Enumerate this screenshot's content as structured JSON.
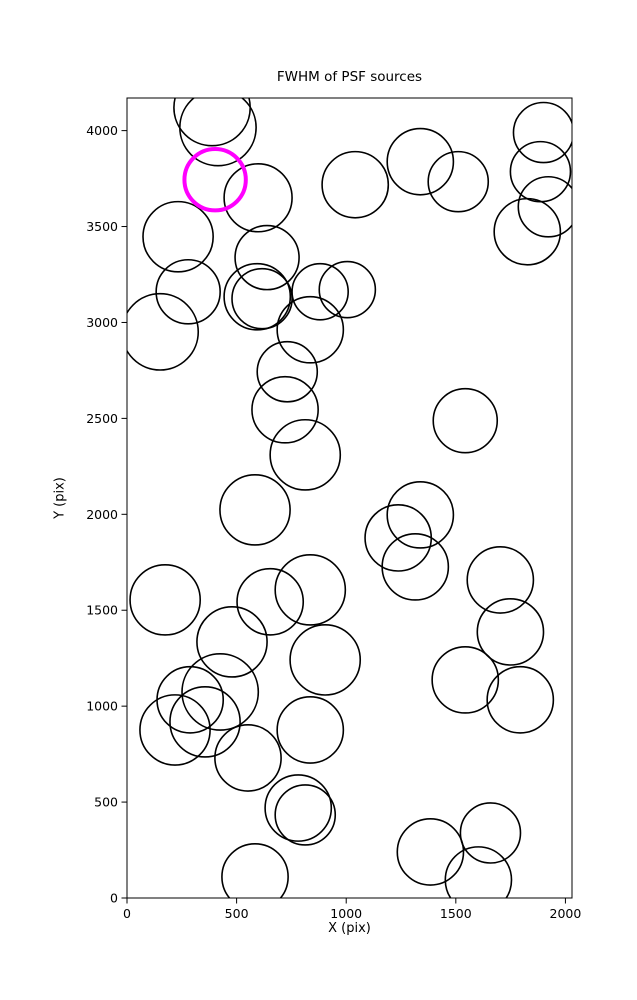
{
  "chart_data": {
    "type": "scatter",
    "title": "FWHM of PSF sources",
    "xlabel": "X (pix)",
    "ylabel": "Y (pix)",
    "xlim": [
      0,
      2030
    ],
    "ylim": [
      0,
      4170
    ],
    "xticks": [
      0,
      500,
      1000,
      1500,
      2000
    ],
    "yticks": [
      0,
      500,
      1000,
      1500,
      2000,
      2500,
      3000,
      3500,
      4000
    ],
    "grid": false,
    "legend": "none",
    "marker_style": "open-circle",
    "marker_color": "#000000",
    "highlight_color": "#ff00ff",
    "circles": [
      {
        "x": 388,
        "y": 4120,
        "r": 174
      },
      {
        "x": 415,
        "y": 4016,
        "r": 174
      },
      {
        "x": 598,
        "y": 3650,
        "r": 155
      },
      {
        "x": 1041,
        "y": 3718,
        "r": 151
      },
      {
        "x": 1338,
        "y": 3838,
        "r": 151
      },
      {
        "x": 1511,
        "y": 3734,
        "r": 137
      },
      {
        "x": 1900,
        "y": 3990,
        "r": 137
      },
      {
        "x": 1886,
        "y": 3786,
        "r": 137
      },
      {
        "x": 1922,
        "y": 3603,
        "r": 137
      },
      {
        "x": 1826,
        "y": 3473,
        "r": 151
      },
      {
        "x": 233,
        "y": 3447,
        "r": 160
      },
      {
        "x": 279,
        "y": 3160,
        "r": 146
      },
      {
        "x": 639,
        "y": 3338,
        "r": 146
      },
      {
        "x": 594,
        "y": 3134,
        "r": 151
      },
      {
        "x": 616,
        "y": 3124,
        "r": 137
      },
      {
        "x": 881,
        "y": 3160,
        "r": 128
      },
      {
        "x": 1005,
        "y": 3171,
        "r": 128
      },
      {
        "x": 836,
        "y": 2962,
        "r": 151
      },
      {
        "x": 151,
        "y": 2951,
        "r": 174
      },
      {
        "x": 731,
        "y": 2743,
        "r": 137
      },
      {
        "x": 721,
        "y": 2545,
        "r": 151
      },
      {
        "x": 813,
        "y": 2310,
        "r": 160
      },
      {
        "x": 1543,
        "y": 2488,
        "r": 146
      },
      {
        "x": 584,
        "y": 2023,
        "r": 160
      },
      {
        "x": 1338,
        "y": 1997,
        "r": 151
      },
      {
        "x": 1237,
        "y": 1877,
        "r": 151
      },
      {
        "x": 1315,
        "y": 1726,
        "r": 151
      },
      {
        "x": 1703,
        "y": 1658,
        "r": 151
      },
      {
        "x": 1749,
        "y": 1387,
        "r": 151
      },
      {
        "x": 836,
        "y": 1606,
        "r": 160
      },
      {
        "x": 653,
        "y": 1544,
        "r": 151
      },
      {
        "x": 174,
        "y": 1554,
        "r": 160
      },
      {
        "x": 479,
        "y": 1335,
        "r": 160
      },
      {
        "x": 904,
        "y": 1241,
        "r": 160
      },
      {
        "x": 425,
        "y": 1074,
        "r": 174
      },
      {
        "x": 288,
        "y": 1033,
        "r": 151
      },
      {
        "x": 356,
        "y": 918,
        "r": 160
      },
      {
        "x": 219,
        "y": 876,
        "r": 160
      },
      {
        "x": 836,
        "y": 876,
        "r": 151
      },
      {
        "x": 552,
        "y": 730,
        "r": 151
      },
      {
        "x": 1543,
        "y": 1137,
        "r": 151
      },
      {
        "x": 1794,
        "y": 1033,
        "r": 151
      },
      {
        "x": 781,
        "y": 469,
        "r": 151
      },
      {
        "x": 813,
        "y": 433,
        "r": 137
      },
      {
        "x": 1384,
        "y": 240,
        "r": 151
      },
      {
        "x": 1658,
        "y": 339,
        "r": 137
      },
      {
        "x": 1603,
        "y": 94,
        "r": 151
      },
      {
        "x": 584,
        "y": 110,
        "r": 151
      },
      {
        "x": 402,
        "y": 3744,
        "r": 140,
        "highlight": true
      }
    ]
  }
}
